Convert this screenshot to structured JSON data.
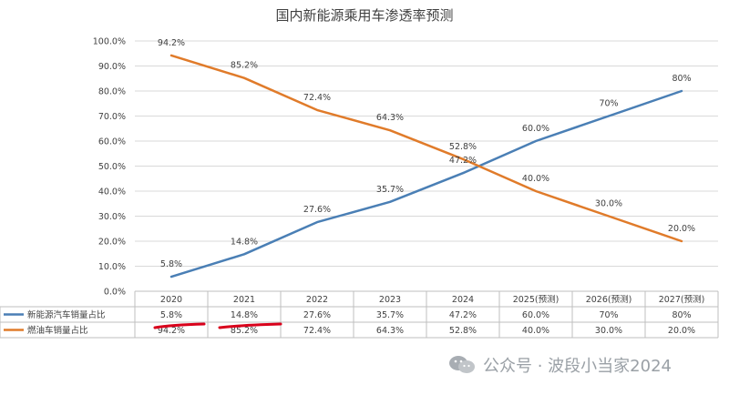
{
  "chart_data": {
    "type": "line",
    "title": "国内新能源乘用车渗透率预测",
    "x": [
      "2020",
      "2021",
      "2022",
      "2023",
      "2024",
      "2025(预测)",
      "2026(预测)",
      "2027(预测)"
    ],
    "ylim": [
      0,
      100
    ],
    "yticks": [
      "0.0%",
      "10.0%",
      "20.0%",
      "30.0%",
      "40.0%",
      "50.0%",
      "60.0%",
      "70.0%",
      "80.0%",
      "90.0%",
      "100.0%"
    ],
    "grid": true,
    "series": [
      {
        "name": "新能源汽车销量占比",
        "color": "#4a7fb5",
        "values": [
          5.8,
          14.8,
          27.6,
          35.7,
          47.2,
          60.0,
          70,
          80
        ],
        "labels": [
          "5.8%",
          "14.8%",
          "27.6%",
          "35.7%",
          "47.2%",
          "60.0%",
          "70%",
          "80%"
        ]
      },
      {
        "name": "燃油车销量占比",
        "color": "#e07b2a",
        "values": [
          94.2,
          85.2,
          72.4,
          64.3,
          52.8,
          40.0,
          30.0,
          20.0
        ],
        "labels": [
          "94.2%",
          "85.2%",
          "72.4%",
          "64.3%",
          "52.8%",
          "40.0%",
          "30.0%",
          "20.0%"
        ]
      }
    ],
    "data_table": true
  },
  "watermark": {
    "text": "公众号 · 波段小当家2024",
    "icon": "wechat-icon"
  },
  "annotation_color": "#d9001b"
}
